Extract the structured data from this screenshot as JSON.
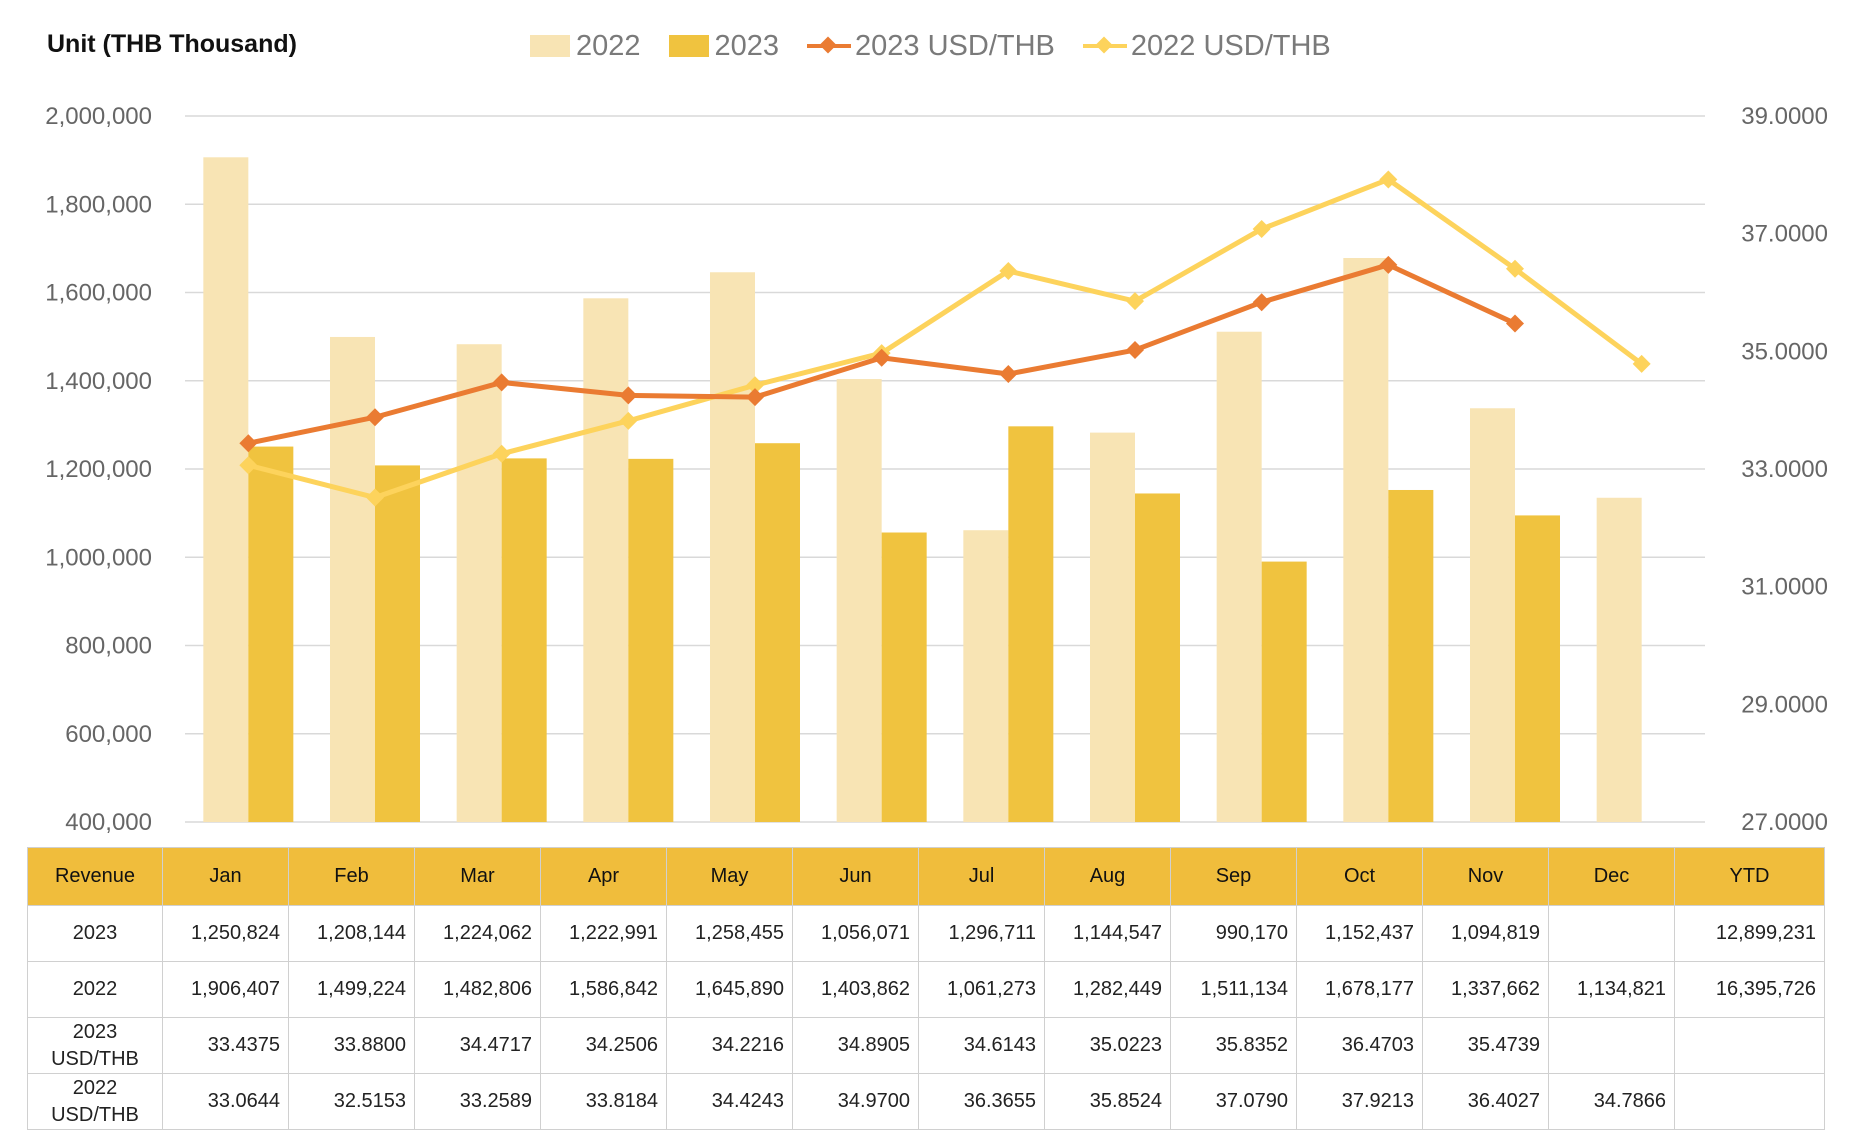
{
  "unit_label": "Unit (THB  Thousand)",
  "legend": [
    {
      "label": "2022",
      "kind": "bar",
      "color": "#f8e4b4"
    },
    {
      "label": "2023",
      "kind": "bar",
      "color": "#f0c33f"
    },
    {
      "label": "2023 USD/THB",
      "kind": "line",
      "color": "#ea7b32"
    },
    {
      "label": "2022 USD/THB",
      "kind": "line",
      "color": "#fdd35c"
    }
  ],
  "chart_data": {
    "type": "bar",
    "categories": [
      "Jan",
      "Feb",
      "Mar",
      "Apr",
      "May",
      "Jun",
      "Jul",
      "Aug",
      "Sep",
      "Oct",
      "Nov",
      "Dec"
    ],
    "series": [
      {
        "name": "2022",
        "kind": "bar",
        "axis": "left",
        "color": "#f8e4b4",
        "values": [
          1906407,
          1499224,
          1482806,
          1586842,
          1645890,
          1403862,
          1061273,
          1282449,
          1511134,
          1678177,
          1337662,
          1134821
        ]
      },
      {
        "name": "2023",
        "kind": "bar",
        "axis": "left",
        "color": "#f0c33f",
        "values": [
          1250824,
          1208144,
          1224062,
          1222991,
          1258455,
          1056071,
          1296711,
          1144547,
          990170,
          1152437,
          1094819,
          null
        ]
      },
      {
        "name": "2023 USD/THB",
        "kind": "line",
        "axis": "right",
        "color": "#ea7b32",
        "values": [
          33.4375,
          33.88,
          34.4717,
          34.2506,
          34.2216,
          34.8905,
          34.6143,
          35.0223,
          35.8352,
          36.4703,
          35.4739,
          null
        ]
      },
      {
        "name": "2022 USD/THB",
        "kind": "line",
        "axis": "right",
        "color": "#fdd35c",
        "values": [
          33.0644,
          32.5153,
          33.2589,
          33.8184,
          34.4243,
          34.97,
          36.3655,
          35.8524,
          37.079,
          37.9213,
          36.4027,
          34.7866
        ]
      }
    ],
    "y_left": {
      "min": 400000,
      "max": 2000000,
      "step": 200000,
      "ticks": [
        "400,000",
        "600,000",
        "800,000",
        "1,000,000",
        "1,200,000",
        "1,400,000",
        "1,600,000",
        "1,800,000",
        "2,000,000"
      ]
    },
    "y_right": {
      "min": 27,
      "max": 39,
      "step": 2,
      "ticks": [
        "27.0000",
        "29.0000",
        "31.0000",
        "33.0000",
        "35.0000",
        "37.0000",
        "39.0000"
      ]
    },
    "grid": true,
    "legend_position": "top"
  },
  "table": {
    "header": [
      "Revenue",
      "Jan",
      "Feb",
      "Mar",
      "Apr",
      "May",
      "Jun",
      "Jul",
      "Aug",
      "Sep",
      "Oct",
      "Nov",
      "Dec",
      "YTD"
    ],
    "rows": [
      {
        "label": "2023",
        "cells": [
          "1,250,824",
          "1,208,144",
          "1,224,062",
          "1,222,991",
          "1,258,455",
          "1,056,071",
          "1,296,711",
          "1,144,547",
          "990,170",
          "1,152,437",
          "1,094,819",
          "",
          "12,899,231"
        ]
      },
      {
        "label": "2022",
        "cells": [
          "1,906,407",
          "1,499,224",
          "1,482,806",
          "1,586,842",
          "1,645,890",
          "1,403,862",
          "1,061,273",
          "1,282,449",
          "1,511,134",
          "1,678,177",
          "1,337,662",
          "1,134,821",
          "16,395,726"
        ]
      },
      {
        "label": "2023\nUSD/THB",
        "cells": [
          "33.4375",
          "33.8800",
          "34.4717",
          "34.2506",
          "34.2216",
          "34.8905",
          "34.6143",
          "35.0223",
          "35.8352",
          "36.4703",
          "35.4739",
          "",
          ""
        ]
      },
      {
        "label": "2022\nUSD/THB",
        "cells": [
          "33.0644",
          "32.5153",
          "33.2589",
          "33.8184",
          "34.4243",
          "34.9700",
          "36.3655",
          "35.8524",
          "37.0790",
          "37.9213",
          "36.4027",
          "34.7866",
          ""
        ]
      }
    ]
  }
}
